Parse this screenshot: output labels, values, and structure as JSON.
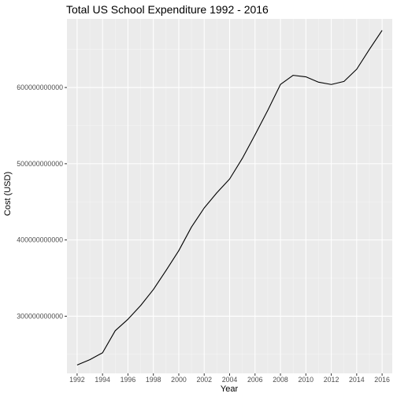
{
  "chart_data": {
    "type": "line",
    "title": "Total US School Expenditure 1992 - 2016",
    "xlabel": "Year",
    "ylabel": "Cost (USD)",
    "xlim": [
      1991.2,
      2016.8
    ],
    "ylim": [
      225000000000,
      690000000000
    ],
    "x_ticks": [
      1992,
      1994,
      1996,
      1998,
      2000,
      2002,
      2004,
      2006,
      2008,
      2010,
      2012,
      2014,
      2016
    ],
    "x_tick_labels": [
      "1992",
      "1994",
      "1996",
      "1998",
      "2000",
      "2002",
      "2004",
      "2006",
      "2008",
      "2010",
      "2012",
      "2014",
      "2016"
    ],
    "y_ticks": [
      300000000000,
      400000000000,
      500000000000,
      600000000000
    ],
    "y_tick_labels": [
      "300000000000",
      "400000000000",
      "500000000000",
      "600000000000"
    ],
    "grid": true,
    "legend": "none",
    "series": [
      {
        "x": [
          1992,
          1993,
          1994,
          1995,
          1996,
          1997,
          1998,
          1999,
          2000,
          2001,
          2002,
          2003,
          2004,
          2005,
          2006,
          2007,
          2008,
          2009,
          2010,
          2011,
          2012,
          2013,
          2014,
          2015,
          2016
        ],
        "values": [
          236000000000,
          243000000000,
          252000000000,
          281000000000,
          296000000000,
          314000000000,
          335000000000,
          360000000000,
          386000000000,
          417000000000,
          442000000000,
          462000000000,
          480000000000,
          507000000000,
          538000000000,
          570000000000,
          604000000000,
          616000000000,
          614000000000,
          607000000000,
          604000000000,
          608000000000,
          624000000000,
          650000000000,
          675000000000
        ],
        "color": "#000000"
      }
    ],
    "colors": {
      "panel_background": "#ebebeb",
      "grid_major": "#ffffff",
      "grid_minor": "#f5f5f5",
      "line": "#000000"
    }
  }
}
